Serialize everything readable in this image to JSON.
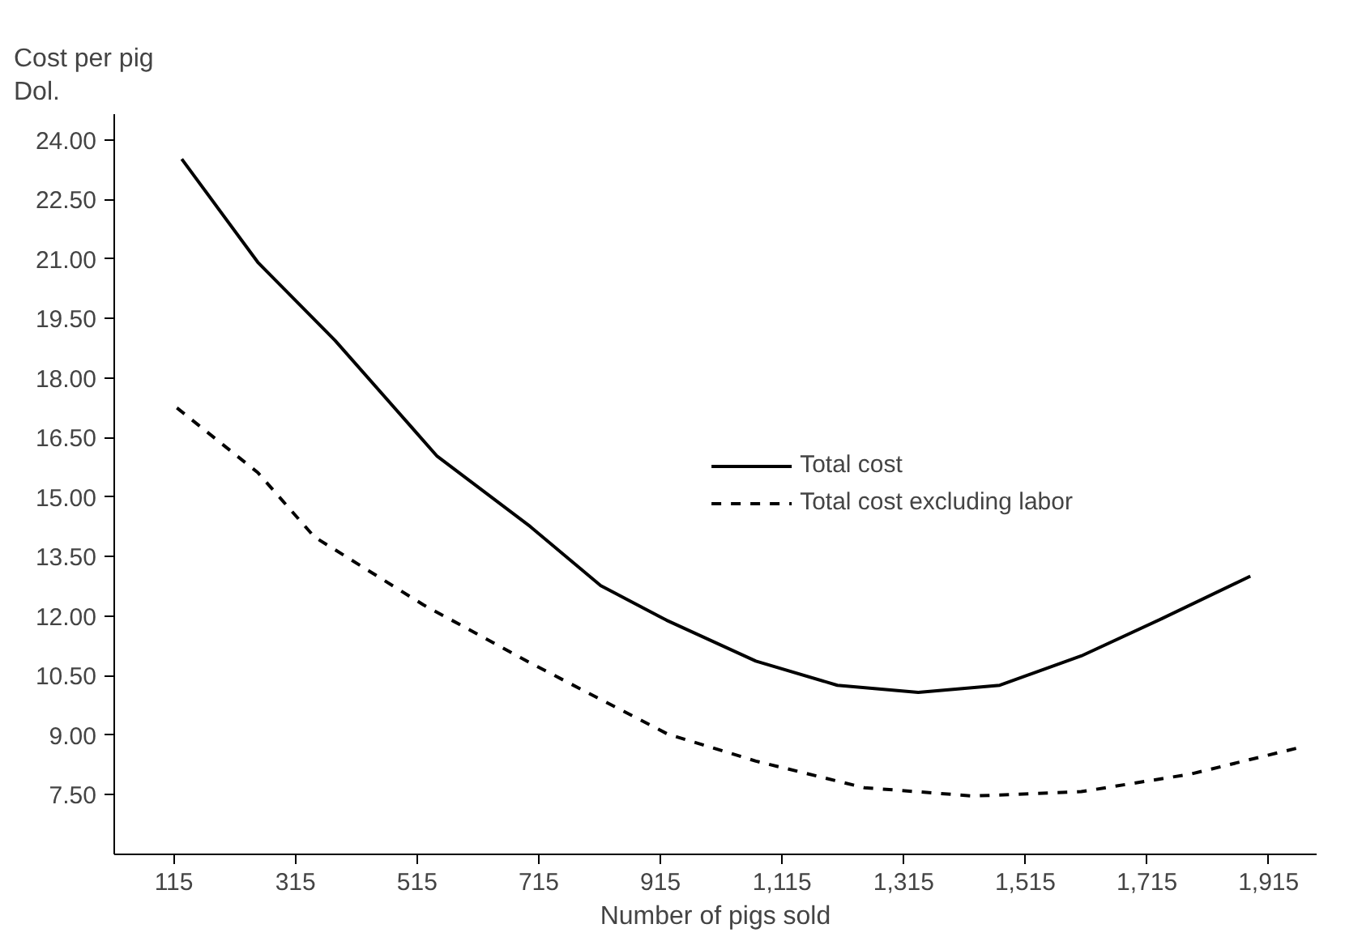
{
  "chart_data": {
    "type": "line",
    "xlabel": "Number of pigs sold",
    "ylabel": "Cost per pig\nDol.",
    "xlim": [
      17,
      1994
    ],
    "ylim": [
      6.0,
      24.65
    ],
    "xticks": [
      {
        "value": 115,
        "label": "115"
      },
      {
        "value": 315,
        "label": "315"
      },
      {
        "value": 515,
        "label": "515"
      },
      {
        "value": 715,
        "label": "715"
      },
      {
        "value": 915,
        "label": "915"
      },
      {
        "value": 1115,
        "label": "1,115"
      },
      {
        "value": 1315,
        "label": "1,315"
      },
      {
        "value": 1515,
        "label": "1,515"
      },
      {
        "value": 1715,
        "label": "1,715"
      },
      {
        "value": 1915,
        "label": "1,915"
      }
    ],
    "yticks": [
      {
        "value": 7.5,
        "label": "7.50"
      },
      {
        "value": 9,
        "label": "9.00"
      },
      {
        "value": 10.5,
        "label": "10.50"
      },
      {
        "value": 12,
        "label": "12.00"
      },
      {
        "value": 13.5,
        "label": "13.50"
      },
      {
        "value": 15,
        "label": "15.00"
      },
      {
        "value": 16.5,
        "label": "16.50"
      },
      {
        "value": 18,
        "label": "18.00"
      },
      {
        "value": 19.5,
        "label": "19.50"
      },
      {
        "value": 21,
        "label": "21.00"
      },
      {
        "value": 22.5,
        "label": "22.50"
      },
      {
        "value": 24,
        "label": "24.00"
      }
    ],
    "grid": false,
    "legend": "right",
    "series": [
      {
        "name": "Total cost",
        "color": "#000000",
        "line_style": "solid",
        "x": [
          128,
          253,
          380,
          548,
          701,
          817,
          925,
          1072,
          1206,
          1339,
          1473,
          1607,
          1741,
          1885
        ],
        "values": [
          23.52,
          20.92,
          18.95,
          16.03,
          14.26,
          12.77,
          11.9,
          10.87,
          10.26,
          10.08,
          10.26,
          11.0,
          11.95,
          13.01
        ]
      },
      {
        "name": "Total cost excluding labor",
        "color": "#000000",
        "line_style": "dashed",
        "x": [
          120,
          253,
          346,
          525,
          704,
          927,
          1072,
          1250,
          1429,
          1607,
          1786,
          1968
        ],
        "values": [
          17.25,
          15.62,
          14.0,
          12.29,
          10.8,
          9.03,
          8.35,
          7.68,
          7.47,
          7.58,
          8.02,
          8.7
        ]
      }
    ]
  }
}
